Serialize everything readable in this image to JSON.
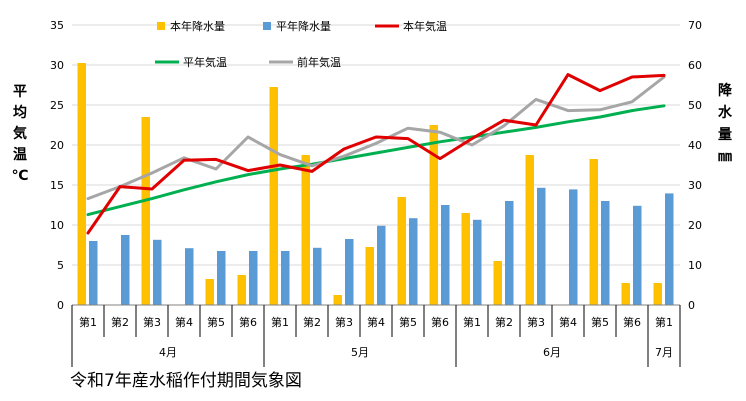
{
  "caption": "令和7年産水稲作付期間気象図",
  "chart_data": {
    "type": "bar+line",
    "categories": [
      "第1",
      "第2",
      "第3",
      "第4",
      "第5",
      "第6",
      "第1",
      "第2",
      "第3",
      "第4",
      "第5",
      "第6",
      "第1",
      "第2",
      "第3",
      "第4",
      "第5",
      "第6",
      "第1"
    ],
    "month_groups": [
      {
        "label": "4月",
        "count": 6
      },
      {
        "label": "5月",
        "count": 6
      },
      {
        "label": "6月",
        "count": 6
      },
      {
        "label": "7月",
        "count": 1
      }
    ],
    "y_left": {
      "label_chars": [
        "平",
        "均",
        "気",
        "温",
        "℃"
      ],
      "min": 0,
      "max": 35,
      "step": 5
    },
    "y_right": {
      "label_chars": [
        "降",
        "水",
        "量",
        "㎜"
      ],
      "min": 0,
      "max": 70,
      "step": 10
    },
    "bar_series": [
      {
        "name": "本年降水量",
        "color": "#FFC000",
        "axis": "right",
        "values": [
          60.5,
          0,
          47,
          0,
          6.5,
          7.5,
          54.5,
          37.5,
          2.5,
          14.5,
          27,
          45,
          23,
          11,
          37.5,
          0,
          36.5,
          5.5,
          5.5
        ]
      },
      {
        "name": "平年降水量",
        "color": "#5B9BD5",
        "axis": "right",
        "values": [
          16,
          17.5,
          16.3,
          14.2,
          13.5,
          13.5,
          13.5,
          14.3,
          16.5,
          19.8,
          21.7,
          25,
          21.3,
          26,
          29.3,
          28.9,
          26,
          24.8,
          27.9
        ]
      }
    ],
    "line_series": [
      {
        "name": "本年気温",
        "color": "#E00000",
        "axis": "left",
        "values": [
          9.0,
          14.8,
          14.5,
          18.1,
          18.2,
          16.8,
          17.5,
          16.7,
          19.5,
          21.0,
          20.8,
          18.3,
          20.8,
          23.1,
          22.5,
          28.8,
          26.8,
          28.5,
          28.7
        ]
      },
      {
        "name": "平年気温",
        "color": "#00B050",
        "axis": "left",
        "values": [
          11.3,
          12.3,
          13.3,
          14.4,
          15.4,
          16.3,
          17.0,
          17.6,
          18.3,
          19.0,
          19.7,
          20.4,
          21.0,
          21.6,
          22.2,
          22.9,
          23.5,
          24.3,
          24.9
        ]
      },
      {
        "name": "前年気温",
        "color": "#A6A6A6",
        "axis": "left",
        "values": [
          13.3,
          14.8,
          16.5,
          18.4,
          17.0,
          21.0,
          18.8,
          17.4,
          18.6,
          20.2,
          22.1,
          21.6,
          20.0,
          22.4,
          25.7,
          24.3,
          24.4,
          25.4,
          28.5
        ]
      }
    ]
  }
}
